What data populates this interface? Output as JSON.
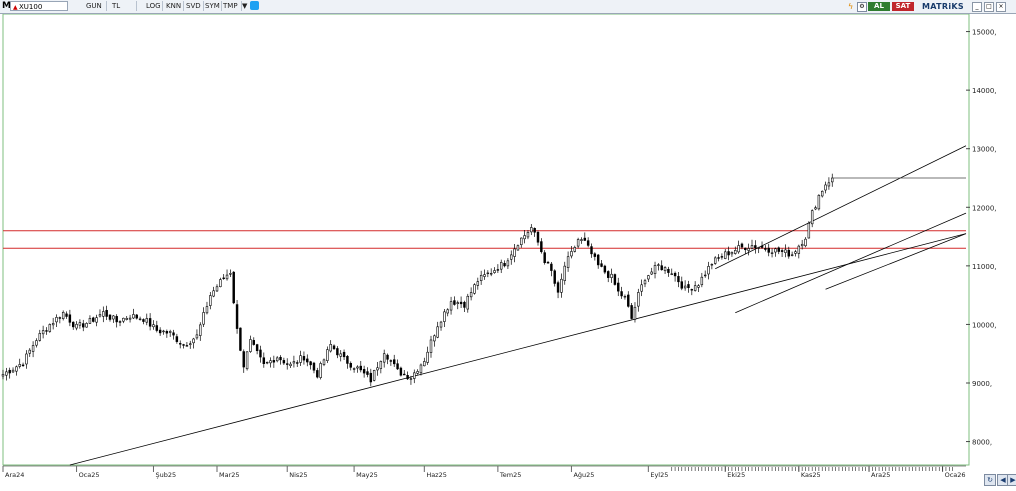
{
  "toolbar": {
    "logo": "M",
    "symbol": "XU100",
    "buttons": [
      "GUN",
      "TL",
      "LOG",
      "KNN",
      "SVD",
      "SYM",
      "TMP"
    ],
    "buy_label": "AL",
    "sell_label": "SAT",
    "brand": "MATRiKS"
  },
  "colors": {
    "candle": "#000000",
    "resistance": "#d42a2a",
    "trendline": "#000000",
    "background": "#ffffff",
    "buy": "#2f7d2f",
    "sell": "#c0262c"
  },
  "chart_data": {
    "type": "candlestick",
    "title": "",
    "xlabel": "",
    "ylabel": "",
    "ylim": [
      7600,
      15300
    ],
    "y_ticks": [
      8000,
      9000,
      10000,
      11000,
      12000,
      13000,
      14000,
      15000
    ],
    "y_tick_labels": [
      "8000,",
      "9000,",
      "10000,",
      "11000,",
      "12000,",
      "13000,",
      "14000,",
      "15000,"
    ],
    "x_labels": [
      "Ara24",
      "Oca25",
      "Şub25",
      "Mar25",
      "Nis25",
      "May25",
      "Haz25",
      "Tem25",
      "Ağu25",
      "Eyl25",
      "Eki25",
      "Kas25",
      "Ara25",
      "Oca26"
    ],
    "x_label_days": [
      0,
      22,
      45,
      64,
      85,
      105,
      126,
      148,
      170,
      193,
      216,
      238,
      259,
      281
    ],
    "total_days": 288,
    "resistance_levels": [
      11300,
      11600
    ],
    "last_close_level": 12500,
    "trendlines": [
      {
        "from": [
          20,
          7600
        ],
        "to": [
          288,
          11550
        ]
      },
      {
        "from": [
          219,
          10200
        ],
        "to": [
          288,
          11900
        ]
      },
      {
        "from": [
          213,
          10950
        ],
        "to": [
          288,
          13050
        ]
      },
      {
        "from": [
          246,
          10600
        ],
        "to": [
          288,
          11550
        ]
      }
    ],
    "anchors": [
      [
        0,
        9150
      ],
      [
        6,
        9350
      ],
      [
        10,
        9750
      ],
      [
        14,
        10000
      ],
      [
        18,
        10200
      ],
      [
        22,
        9950
      ],
      [
        26,
        10050
      ],
      [
        30,
        10200
      ],
      [
        34,
        10050
      ],
      [
        38,
        10150
      ],
      [
        42,
        10100
      ],
      [
        46,
        9900
      ],
      [
        50,
        9850
      ],
      [
        54,
        9650
      ],
      [
        58,
        9800
      ],
      [
        62,
        10500
      ],
      [
        66,
        10800
      ],
      [
        68,
        10900
      ],
      [
        70,
        9900
      ],
      [
        72,
        9300
      ],
      [
        74,
        9700
      ],
      [
        78,
        9300
      ],
      [
        82,
        9450
      ],
      [
        86,
        9300
      ],
      [
        90,
        9450
      ],
      [
        94,
        9150
      ],
      [
        98,
        9650
      ],
      [
        102,
        9400
      ],
      [
        106,
        9250
      ],
      [
        110,
        9050
      ],
      [
        114,
        9550
      ],
      [
        118,
        9200
      ],
      [
        122,
        9100
      ],
      [
        126,
        9400
      ],
      [
        130,
        10000
      ],
      [
        134,
        10400
      ],
      [
        138,
        10350
      ],
      [
        142,
        10750
      ],
      [
        146,
        10900
      ],
      [
        150,
        11050
      ],
      [
        154,
        11400
      ],
      [
        158,
        11650
      ],
      [
        160,
        11400
      ],
      [
        162,
        11100
      ],
      [
        164,
        10900
      ],
      [
        166,
        10500
      ],
      [
        168,
        11000
      ],
      [
        170,
        11200
      ],
      [
        172,
        11450
      ],
      [
        174,
        11400
      ],
      [
        176,
        11200
      ],
      [
        178,
        11000
      ],
      [
        182,
        10800
      ],
      [
        184,
        10550
      ],
      [
        186,
        10450
      ],
      [
        188,
        10100
      ],
      [
        190,
        10500
      ],
      [
        192,
        10800
      ],
      [
        196,
        11000
      ],
      [
        200,
        10900
      ],
      [
        204,
        10600
      ],
      [
        208,
        10700
      ],
      [
        212,
        11050
      ],
      [
        216,
        11200
      ],
      [
        220,
        11300
      ],
      [
        224,
        11350
      ],
      [
        228,
        11300
      ],
      [
        232,
        11250
      ],
      [
        236,
        11200
      ],
      [
        240,
        11500
      ],
      [
        242,
        11900
      ],
      [
        244,
        12200
      ],
      [
        246,
        12400
      ],
      [
        248,
        12500
      ]
    ]
  },
  "bottom_icons": [
    "refresh-icon",
    "arrow-left-icon",
    "arrow-right-icon"
  ]
}
